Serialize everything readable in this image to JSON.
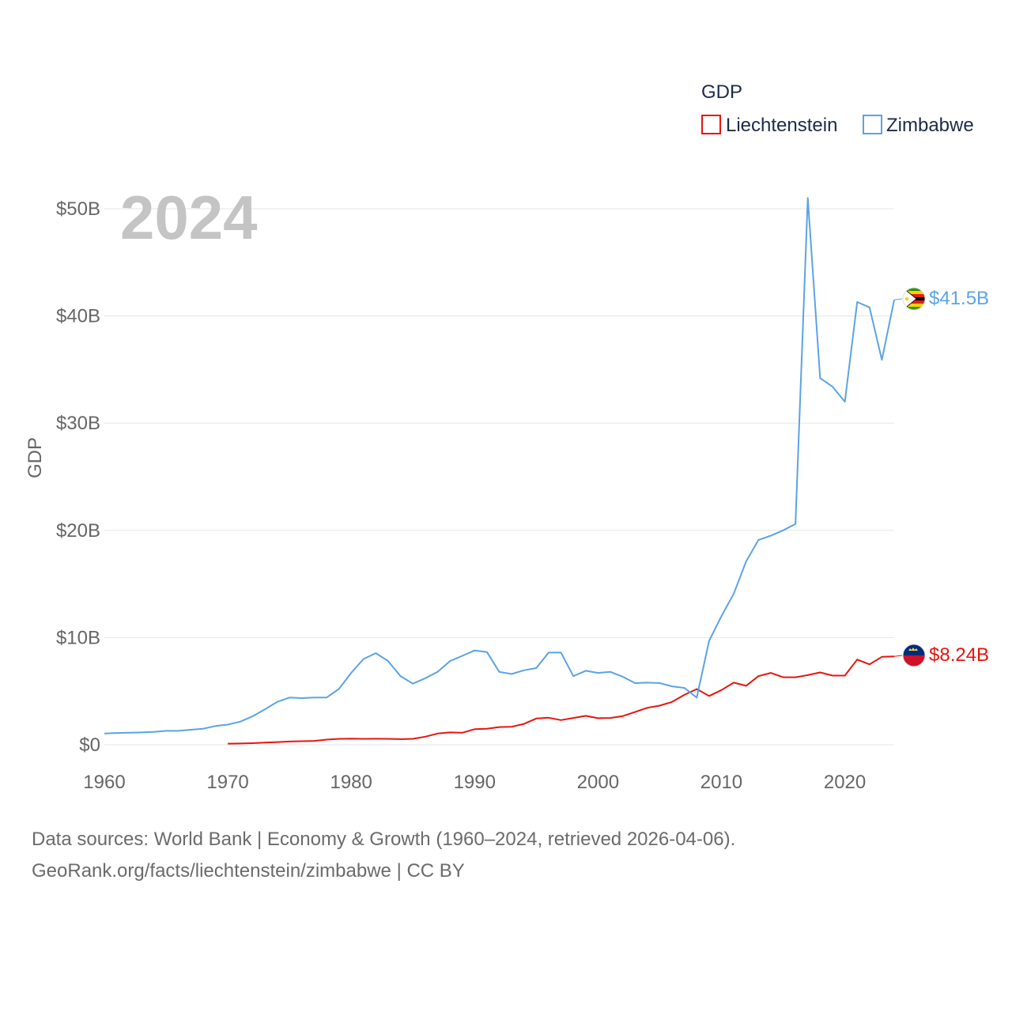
{
  "chart_data": {
    "type": "line",
    "legend_title": "GDP",
    "big_year_label": "2024",
    "ylabel": "GDP",
    "ylim": [
      0,
      50000000000
    ],
    "y_ticks": [
      {
        "value": 0,
        "label": "$0"
      },
      {
        "value": 10000000000,
        "label": "$10B"
      },
      {
        "value": 20000000000,
        "label": "$20B"
      },
      {
        "value": 30000000000,
        "label": "$30B"
      },
      {
        "value": 40000000000,
        "label": "$40B"
      },
      {
        "value": 50000000000,
        "label": "$50B"
      }
    ],
    "xlim": [
      1960,
      2024
    ],
    "x_ticks": [
      {
        "value": 1960,
        "label": "1960"
      },
      {
        "value": 1970,
        "label": "1970"
      },
      {
        "value": 1980,
        "label": "1980"
      },
      {
        "value": 1990,
        "label": "1990"
      },
      {
        "value": 2000,
        "label": "2000"
      },
      {
        "value": 2010,
        "label": "2010"
      },
      {
        "value": 2020,
        "label": "2020"
      }
    ],
    "series": [
      {
        "name": "Liechtenstein",
        "color": "#e8140f",
        "end_label": "$8.24B",
        "flag_icon": "liechtenstein-flag-icon",
        "x": [
          1970,
          1971,
          1972,
          1973,
          1974,
          1975,
          1976,
          1977,
          1978,
          1979,
          1980,
          1981,
          1982,
          1983,
          1984,
          1985,
          1986,
          1987,
          1988,
          1989,
          1990,
          1991,
          1992,
          1993,
          1994,
          1995,
          1996,
          1997,
          1998,
          1999,
          2000,
          2001,
          2002,
          2003,
          2004,
          2005,
          2006,
          2007,
          2008,
          2009,
          2010,
          2011,
          2012,
          2013,
          2014,
          2015,
          2016,
          2017,
          2018,
          2019,
          2020,
          2021,
          2022,
          2023,
          2024
        ],
        "values": [
          0.1,
          0.12,
          0.15,
          0.2,
          0.25,
          0.3,
          0.33,
          0.36,
          0.48,
          0.55,
          0.57,
          0.55,
          0.56,
          0.55,
          0.52,
          0.55,
          0.75,
          1.05,
          1.15,
          1.12,
          1.45,
          1.5,
          1.65,
          1.68,
          1.95,
          2.45,
          2.52,
          2.3,
          2.5,
          2.7,
          2.48,
          2.5,
          2.68,
          3.05,
          3.45,
          3.65,
          4.0,
          4.65,
          5.2,
          4.55,
          5.1,
          5.8,
          5.5,
          6.4,
          6.7,
          6.3,
          6.3,
          6.5,
          6.75,
          6.45,
          6.45,
          7.95,
          7.5,
          8.2,
          8.24
        ],
        "value_unit": "billion USD"
      },
      {
        "name": "Zimbabwe",
        "color": "#5ba3e6",
        "end_label": "$41.5B",
        "flag_icon": "zimbabwe-flag-icon",
        "x": [
          1960,
          1961,
          1962,
          1963,
          1964,
          1965,
          1966,
          1967,
          1968,
          1969,
          1970,
          1971,
          1972,
          1973,
          1974,
          1975,
          1976,
          1977,
          1978,
          1979,
          1980,
          1981,
          1982,
          1983,
          1984,
          1985,
          1986,
          1987,
          1988,
          1989,
          1990,
          1991,
          1992,
          1993,
          1994,
          1995,
          1996,
          1997,
          1998,
          1999,
          2000,
          2001,
          2002,
          2003,
          2004,
          2005,
          2006,
          2007,
          2008,
          2009,
          2010,
          2011,
          2012,
          2013,
          2014,
          2015,
          2016,
          2017,
          2018,
          2019,
          2020,
          2021,
          2022,
          2023,
          2024
        ],
        "values": [
          1.05,
          1.1,
          1.12,
          1.15,
          1.2,
          1.3,
          1.3,
          1.4,
          1.5,
          1.75,
          1.88,
          2.15,
          2.65,
          3.3,
          4.0,
          4.4,
          4.35,
          4.4,
          4.4,
          5.2,
          6.7,
          8.0,
          8.55,
          7.8,
          6.4,
          5.7,
          6.2,
          6.8,
          7.8,
          8.3,
          8.8,
          8.65,
          6.8,
          6.6,
          6.95,
          7.15,
          8.6,
          8.6,
          6.4,
          6.9,
          6.7,
          6.8,
          6.35,
          5.75,
          5.8,
          5.75,
          5.45,
          5.3,
          4.4,
          9.7,
          12.0,
          14.1,
          17.1,
          19.1,
          19.5,
          20.0,
          20.6,
          51.0,
          34.2,
          33.4,
          32.0,
          41.3,
          40.8,
          35.9,
          41.5
        ],
        "value_unit": "billion USD"
      }
    ]
  },
  "footer": {
    "line1": "Data sources: World Bank | Economy & Growth (1960–2024, retrieved 2026-04-06).",
    "line2": "GeoRank.org/facts/liechtenstein/zimbabwe | CC BY"
  }
}
